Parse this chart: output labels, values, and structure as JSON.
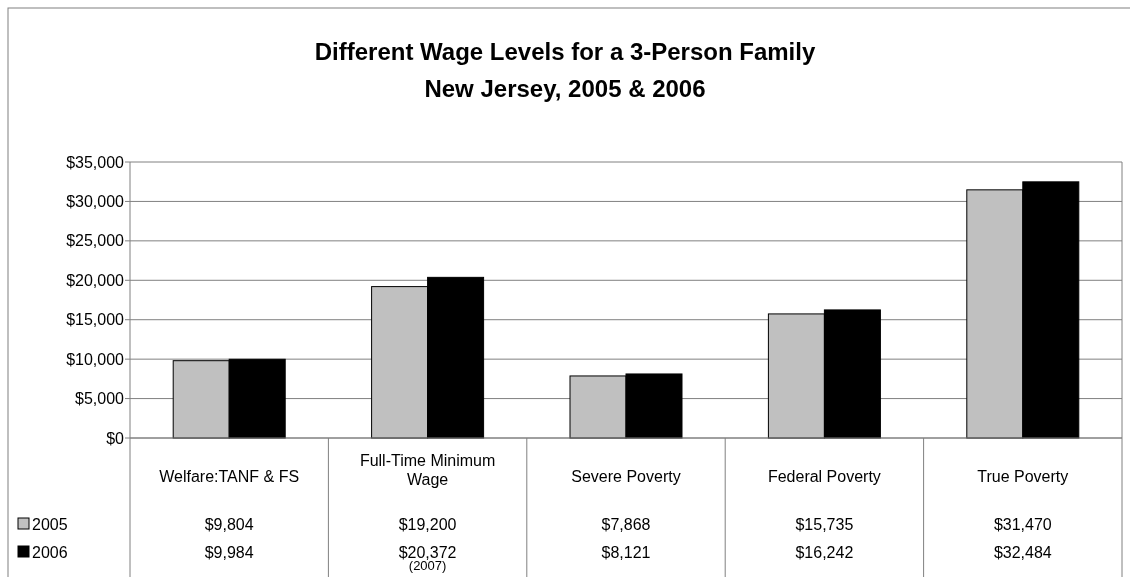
{
  "chart_data": {
    "type": "bar",
    "title": "Different Wage Levels for a 3-Person Family",
    "subtitle": "New Jersey, 2005 & 2006",
    "categories": [
      "Welfare:TANF & FS",
      "Full-Time Minimum Wage",
      "Severe Poverty",
      "Federal Poverty",
      "True Poverty"
    ],
    "series": [
      {
        "name": "2005",
        "color": "#c0c0c0",
        "values": [
          9804,
          19200,
          7868,
          15735,
          31470
        ],
        "value_labels": [
          "$9,804",
          "$19,200",
          "$7,868",
          "$15,735",
          "$31,470"
        ]
      },
      {
        "name": "2006",
        "color": "#000000",
        "values": [
          9984,
          20372,
          8121,
          16242,
          32484
        ],
        "value_labels": [
          "$9,984",
          "$20,372",
          "$8,121",
          "$16,242",
          "$32,484"
        ]
      }
    ],
    "ylim": [
      0,
      35000
    ],
    "yticks": [
      {
        "value": 0,
        "label": "$0"
      },
      {
        "value": 5000,
        "label": "$5,000"
      },
      {
        "value": 10000,
        "label": "$10,000"
      },
      {
        "value": 15000,
        "label": "$15,000"
      },
      {
        "value": 20000,
        "label": "$20,000"
      },
      {
        "value": 25000,
        "label": "$25,000"
      },
      {
        "value": 30000,
        "label": "$30,000"
      },
      {
        "value": 35000,
        "label": "$35,000"
      }
    ],
    "grid": "y",
    "legend": "bottom",
    "annotations": [
      "(2007)"
    ]
  }
}
